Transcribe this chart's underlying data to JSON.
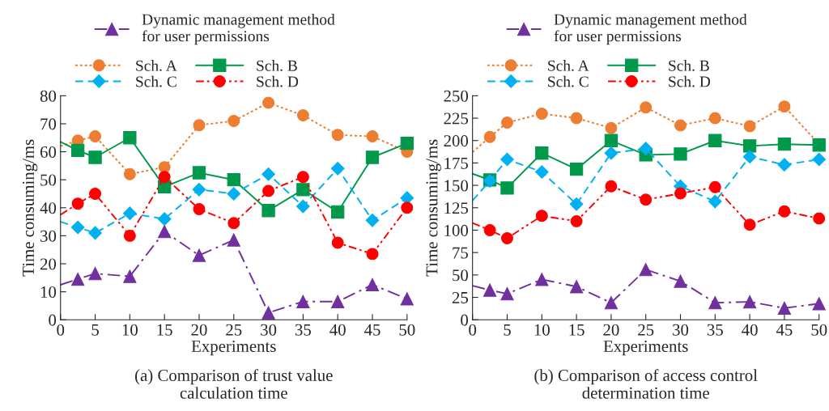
{
  "chart_data": [
    {
      "type": "line",
      "title": "(a) Comparison of trust value\ncalculation time",
      "xlabel": "Experiments",
      "ylabel": "Time consuming/ms",
      "x": [
        0,
        2.5,
        5,
        10,
        15,
        20,
        25,
        30,
        35,
        40,
        45,
        50
      ],
      "xlim": [
        0,
        50
      ],
      "xticks": [
        0,
        5,
        10,
        15,
        20,
        25,
        30,
        35,
        40,
        45,
        50
      ],
      "ylim": [
        0,
        80
      ],
      "yticks": [
        0,
        10,
        20,
        30,
        40,
        50,
        60,
        70,
        80
      ],
      "grid": false,
      "legend": "top",
      "series": [
        {
          "name": "Dynamic management method\nfor user permissions",
          "color": "#7030a0",
          "marker": "triangle",
          "line_style": "dashdot",
          "values": [
            12.5,
            14.5,
            16.5,
            15.5,
            31.5,
            23,
            28.5,
            2.5,
            6.5,
            6.5,
            12.5,
            7.5
          ]
        },
        {
          "name": "Sch. A",
          "color": "#ed7d31",
          "marker": "circle",
          "line_style": "dotted",
          "values": [
            62,
            64,
            65.5,
            52,
            54.5,
            69.5,
            71,
            77.5,
            73,
            66,
            65.5,
            60
          ]
        },
        {
          "name": "Sch. B",
          "color": "#00994c",
          "marker": "square",
          "line_style": "solid",
          "values": [
            63.5,
            60.5,
            58,
            65,
            47.5,
            52.5,
            50,
            39,
            46.5,
            38.5,
            58,
            63
          ]
        },
        {
          "name": "Sch. C",
          "color": "#00b0f0",
          "marker": "diamond",
          "line_style": "dashed",
          "values": [
            35,
            33,
            31,
            38,
            36,
            46.5,
            45,
            52,
            40.5,
            54,
            35.5,
            43.5
          ]
        },
        {
          "name": "Sch. D",
          "color": "#ff0000",
          "marker": "circle",
          "line_style": "dashdotdot",
          "values": [
            37.5,
            41.5,
            45,
            30,
            51,
            39.5,
            34.5,
            46,
            51,
            27.5,
            23.5,
            40
          ]
        }
      ]
    },
    {
      "type": "line",
      "title": "(b) Comparison of access control\ndetermination time",
      "xlabel": "Experiments",
      "ylabel": "Time consuming/ms",
      "x": [
        0,
        2.5,
        5,
        10,
        15,
        20,
        25,
        30,
        35,
        40,
        45,
        50
      ],
      "xlim": [
        0,
        50
      ],
      "xticks": [
        0,
        5,
        10,
        15,
        20,
        25,
        30,
        35,
        40,
        45,
        50
      ],
      "ylim": [
        0,
        250
      ],
      "yticks": [
        0,
        25,
        50,
        75,
        100,
        125,
        150,
        175,
        200,
        225,
        250
      ],
      "grid": false,
      "legend": "top",
      "series": [
        {
          "name": "Dynamic management method\nfor user permissions",
          "color": "#7030a0",
          "marker": "triangle",
          "line_style": "dashdot",
          "values": [
            38,
            33,
            29,
            45,
            37,
            19,
            56,
            43,
            19,
            20,
            13,
            18
          ]
        },
        {
          "name": "Sch. A",
          "color": "#ed7d31",
          "marker": "circle",
          "line_style": "dotted",
          "values": [
            187,
            204,
            220,
            230,
            225,
            214,
            237,
            217,
            225,
            216,
            238,
            196
          ]
        },
        {
          "name": "Sch. B",
          "color": "#00994c",
          "marker": "square",
          "line_style": "solid",
          "values": [
            163,
            156,
            147,
            186,
            168,
            200,
            184,
            185,
            200,
            194,
            196,
            195
          ]
        },
        {
          "name": "Sch. C",
          "color": "#00b0f0",
          "marker": "diamond",
          "line_style": "dashed",
          "values": [
            133,
            155,
            179,
            165,
            129,
            186,
            191,
            149,
            132,
            182,
            173,
            179
          ]
        },
        {
          "name": "Sch. D",
          "color": "#ff0000",
          "marker": "circle",
          "line_style": "dashdotdot",
          "values": [
            108,
            100,
            91,
            116,
            110,
            149,
            134,
            141,
            148,
            106,
            121,
            113
          ]
        }
      ]
    }
  ]
}
